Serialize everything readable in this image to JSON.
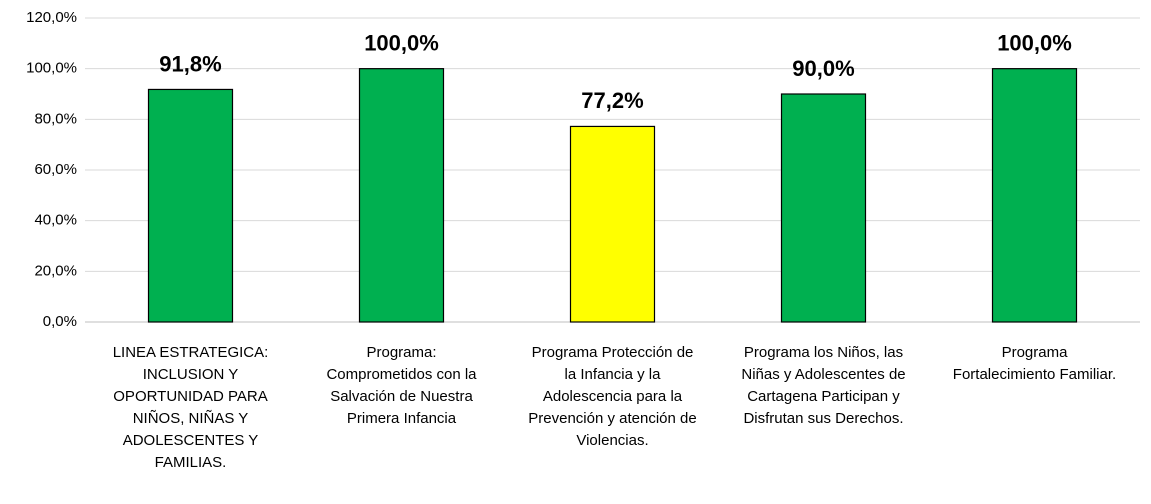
{
  "chart_data": {
    "type": "bar",
    "categories": [
      "LINEA ESTRATEGICA:\nINCLUSION Y\nOPORTUNIDAD PARA\nNIÑOS, NIÑAS Y\nADOLESCENTES Y\nFAMILIAS.",
      "Programa:\nComprometidos con la\nSalvación de Nuestra\nPrimera Infancia",
      "Programa Protección de\nla Infancia y la\nAdolescencia para la\nPrevención y atención de\nViolencias.",
      "Programa los Niños, las\nNiñas y Adolescentes de\nCartagena Participan y\nDisfrutan sus Derechos.",
      "Programa\nFortalecimiento Familiar."
    ],
    "values": [
      91.8,
      100,
      77.2,
      90,
      100
    ],
    "value_labels": [
      "91,8%",
      "100,0%",
      "77,2%",
      "90,0%",
      "100,0%"
    ],
    "colors": [
      "#00b050",
      "#00b050",
      "#ffff00",
      "#00b050",
      "#00b050"
    ],
    "ylim": [
      0,
      120
    ],
    "yticks": [
      {
        "value": 0,
        "label": "0,0%"
      },
      {
        "value": 20,
        "label": "20,0%"
      },
      {
        "value": 40,
        "label": "40,0%"
      },
      {
        "value": 60,
        "label": "60,0%"
      },
      {
        "value": 80,
        "label": "80,0%"
      },
      {
        "value": 100,
        "label": "100,0%"
      },
      {
        "value": 120,
        "label": "120,0%"
      }
    ],
    "grid": true
  }
}
